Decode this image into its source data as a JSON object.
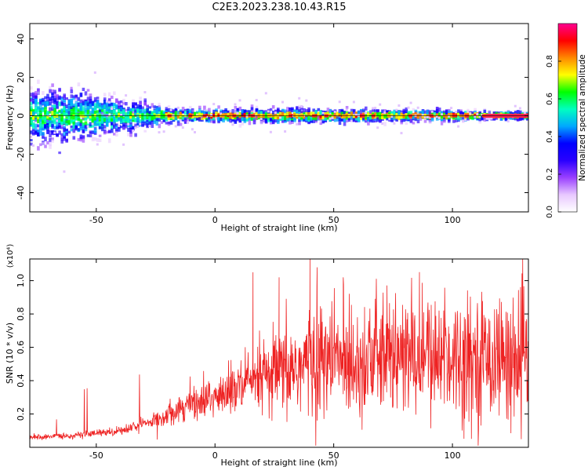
{
  "figure": {
    "title": "C2E3.2023.238.10.43.R15"
  },
  "chart_data": [
    {
      "type": "heatmap",
      "xlabel": "Height of straight line (km)",
      "ylabel": "Frequency (Hz)",
      "xlim": [
        -78,
        132
      ],
      "ylim": [
        -50,
        48
      ],
      "xticks": [
        -50,
        0,
        50,
        100
      ],
      "yticks": [
        -40,
        -20,
        0,
        20,
        40
      ],
      "colorbar": {
        "label": "Normalized spectral amplitude",
        "range": [
          0.0,
          1.0
        ],
        "ticks": [
          0.0,
          0.2,
          0.4,
          0.6,
          0.8
        ],
        "tick_labels": [
          "0.0",
          "0.2",
          "0.4",
          "0.6",
          "0.8"
        ],
        "colormap": [
          "#ffffff",
          "#e8c8ff",
          "#9a40ff",
          "#2a00ff",
          "#0000ff",
          "#00a8ff",
          "#00ffc0",
          "#00ff00",
          "#ffff00",
          "#ff8800",
          "#ff0000",
          "#ff0090"
        ]
      },
      "spread_envelope": [
        {
          "x": -78,
          "half_width": 13
        },
        {
          "x": -60,
          "half_width": 11
        },
        {
          "x": -45,
          "half_width": 9
        },
        {
          "x": -30,
          "half_width": 6
        },
        {
          "x": -20,
          "half_width": 3.5
        },
        {
          "x": 0,
          "half_width": 3
        },
        {
          "x": 30,
          "half_width": 3.5
        },
        {
          "x": 60,
          "half_width": 3
        },
        {
          "x": 90,
          "half_width": 2.5
        },
        {
          "x": 115,
          "half_width": 2
        },
        {
          "x": 132,
          "half_width": 1.5
        }
      ],
      "center_line_hz": 0
    },
    {
      "type": "line",
      "xlabel": "Height of straight line (km)",
      "ylabel": "SNR (10 * v/v)",
      "y_multiplier": "(x10⁴)",
      "xlim": [
        -78,
        132
      ],
      "ylim": [
        0,
        1.13
      ],
      "xticks": [
        -50,
        0,
        50,
        100
      ],
      "yticks": [
        0.2,
        0.4,
        0.6,
        0.8,
        1.0
      ],
      "ytick_labels": [
        "0.2",
        "0.4",
        "0.6",
        "0.8",
        "1.0"
      ],
      "series": [
        {
          "color": "#ee2222",
          "trend": [
            {
              "x": -78,
              "y": 0.06
            },
            {
              "x": -60,
              "y": 0.07
            },
            {
              "x": -40,
              "y": 0.1
            },
            {
              "x": -25,
              "y": 0.16
            },
            {
              "x": -15,
              "y": 0.24
            },
            {
              "x": 0,
              "y": 0.3
            },
            {
              "x": 15,
              "y": 0.38
            },
            {
              "x": 30,
              "y": 0.45
            },
            {
              "x": 42,
              "y": 0.52
            },
            {
              "x": 60,
              "y": 0.53
            },
            {
              "x": 80,
              "y": 0.54
            },
            {
              "x": 100,
              "y": 0.55
            },
            {
              "x": 115,
              "y": 0.54
            },
            {
              "x": 132,
              "y": 0.52
            }
          ],
          "peaks": [
            {
              "x": 16,
              "y": 1.05
            },
            {
              "x": 27,
              "y": 1.02
            },
            {
              "x": 40,
              "y": 1.13
            },
            {
              "x": 43,
              "y": 1.08
            },
            {
              "x": 54,
              "y": 1.02
            }
          ]
        }
      ]
    }
  ]
}
